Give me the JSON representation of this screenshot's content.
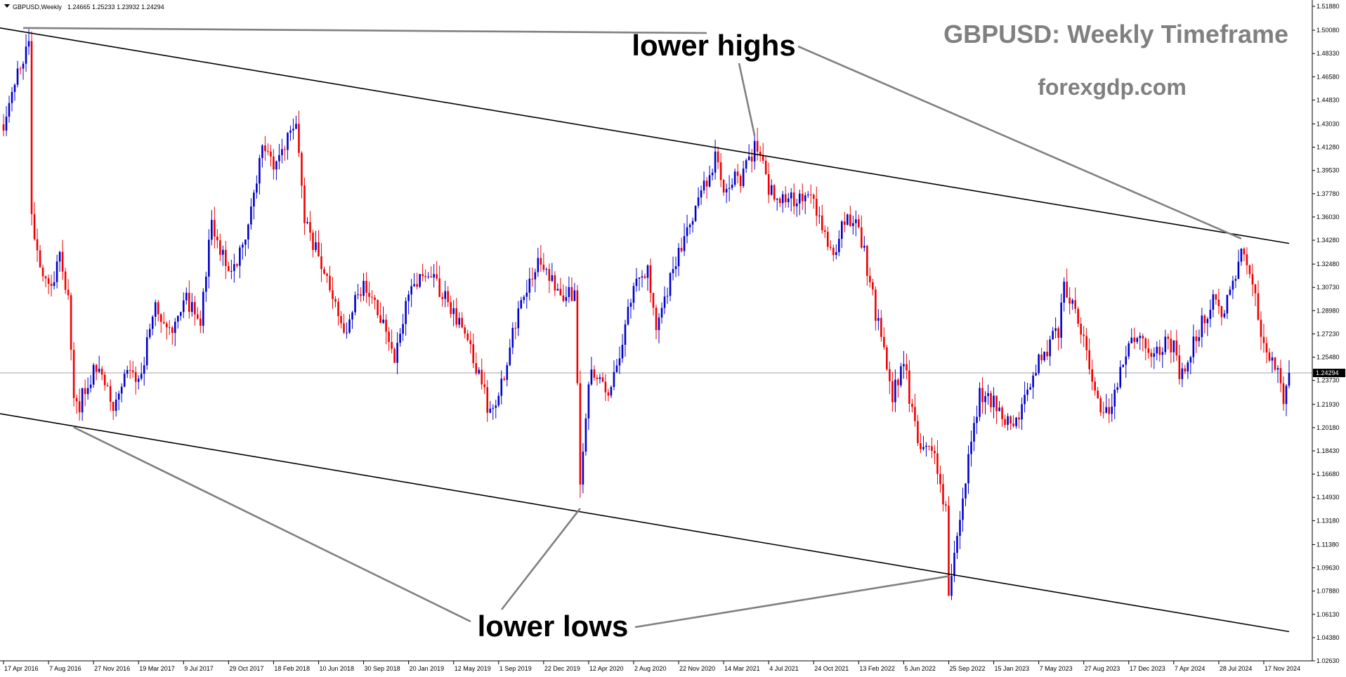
{
  "header": {
    "symbol_label": "GBPUSD,Weekly",
    "ohlc_label": "1.24665 1.25233 1.23932 1.24294"
  },
  "overlay": {
    "title": "GBPUSD: Weekly Timeframe",
    "watermark": "forexgdp.com",
    "annotation_highs": "lower highs",
    "annotation_lows": "lower lows"
  },
  "colors": {
    "bull": "#0000cc",
    "bear": "#ee0000",
    "trendline": "#000000",
    "pointer": "#808080",
    "current_price_line": "#a0a0a0",
    "price_tag_bg": "#000000",
    "price_tag_text": "#ffffff"
  },
  "chart_data": {
    "type": "candlestick",
    "symbol": "GBPUSD",
    "timeframe": "Weekly",
    "current_price": 1.24294,
    "current_price_label": "1.24294",
    "x_start": "2016-04-17",
    "x_end": "2025-01-19",
    "ylim": [
      1.0263,
      1.5188
    ],
    "y_ticks": [
      "1.51880",
      "1.50080",
      "1.48330",
      "1.46580",
      "1.44830",
      "1.43030",
      "1.41280",
      "1.39530",
      "1.37780",
      "1.36030",
      "1.34280",
      "1.32480",
      "1.30730",
      "1.28980",
      "1.27230",
      "1.25480",
      "1.23730",
      "1.21930",
      "1.20180",
      "1.18430",
      "1.16680",
      "1.14930",
      "1.13180",
      "1.11380",
      "1.09630",
      "1.07880",
      "1.06130",
      "1.04380",
      "1.02630"
    ],
    "x_ticks": [
      {
        "label": "17 Apr 2016",
        "date": "2016-04-17"
      },
      {
        "label": "7 Aug 2016",
        "date": "2016-08-07"
      },
      {
        "label": "27 Nov 2016",
        "date": "2016-11-27"
      },
      {
        "label": "19 Mar 2017",
        "date": "2017-03-19"
      },
      {
        "label": "9 Jul 2017",
        "date": "2017-07-09"
      },
      {
        "label": "29 Oct 2017",
        "date": "2017-10-29"
      },
      {
        "label": "18 Feb 2018",
        "date": "2018-02-18"
      },
      {
        "label": "10 Jun 2018",
        "date": "2018-06-10"
      },
      {
        "label": "30 Sep 2018",
        "date": "2018-09-30"
      },
      {
        "label": "20 Jan 2019",
        "date": "2019-01-20"
      },
      {
        "label": "12 May 2019",
        "date": "2019-05-12"
      },
      {
        "label": "1 Sep 2019",
        "date": "2019-09-01"
      },
      {
        "label": "22 Dec 2019",
        "date": "2019-12-22"
      },
      {
        "label": "12 Apr 2020",
        "date": "2020-04-12"
      },
      {
        "label": "2 Aug 2020",
        "date": "2020-08-02"
      },
      {
        "label": "22 Nov 2020",
        "date": "2020-11-22"
      },
      {
        "label": "14 Mar 2021",
        "date": "2021-03-14"
      },
      {
        "label": "4 Jul 2021",
        "date": "2021-07-04"
      },
      {
        "label": "24 Oct 2021",
        "date": "2021-10-24"
      },
      {
        "label": "13 Feb 2022",
        "date": "2022-02-13"
      },
      {
        "label": "5 Jun 2022",
        "date": "2022-06-05"
      },
      {
        "label": "25 Sep 2022",
        "date": "2022-09-25"
      },
      {
        "label": "15 Jan 2023",
        "date": "2023-01-15"
      },
      {
        "label": "7 May 2023",
        "date": "2023-05-07"
      },
      {
        "label": "27 Aug 2023",
        "date": "2023-08-27"
      },
      {
        "label": "17 Dec 2023",
        "date": "2023-12-17"
      },
      {
        "label": "7 Apr 2024",
        "date": "2024-04-07"
      },
      {
        "label": "28 Jul 2024",
        "date": "2024-07-28"
      },
      {
        "label": "17 Nov 2024",
        "date": "2024-11-17"
      }
    ],
    "close_path": [
      {
        "date": "2016-04-17",
        "price": 1.43
      },
      {
        "date": "2016-05-15",
        "price": 1.46
      },
      {
        "date": "2016-06-19",
        "price": 1.49
      },
      {
        "date": "2016-06-26",
        "price": 1.36
      },
      {
        "date": "2016-07-17",
        "price": 1.32
      },
      {
        "date": "2016-08-07",
        "price": 1.305
      },
      {
        "date": "2016-09-04",
        "price": 1.33
      },
      {
        "date": "2016-09-25",
        "price": 1.3
      },
      {
        "date": "2016-10-09",
        "price": 1.22
      },
      {
        "date": "2016-10-23",
        "price": 1.22
      },
      {
        "date": "2016-11-27",
        "price": 1.245
      },
      {
        "date": "2016-12-18",
        "price": 1.24
      },
      {
        "date": "2017-01-15",
        "price": 1.22
      },
      {
        "date": "2017-02-19",
        "price": 1.25
      },
      {
        "date": "2017-03-12",
        "price": 1.23
      },
      {
        "date": "2017-04-30",
        "price": 1.29
      },
      {
        "date": "2017-06-11",
        "price": 1.27
      },
      {
        "date": "2017-07-09",
        "price": 1.3
      },
      {
        "date": "2017-08-20",
        "price": 1.285
      },
      {
        "date": "2017-09-17",
        "price": 1.355
      },
      {
        "date": "2017-10-29",
        "price": 1.32
      },
      {
        "date": "2017-12-10",
        "price": 1.34
      },
      {
        "date": "2018-01-21",
        "price": 1.41
      },
      {
        "date": "2018-02-18",
        "price": 1.4
      },
      {
        "date": "2018-04-15",
        "price": 1.43
      },
      {
        "date": "2018-05-06",
        "price": 1.355
      },
      {
        "date": "2018-06-10",
        "price": 1.33
      },
      {
        "date": "2018-08-12",
        "price": 1.275
      },
      {
        "date": "2018-09-30",
        "price": 1.31
      },
      {
        "date": "2018-11-18",
        "price": 1.28
      },
      {
        "date": "2018-12-16",
        "price": 1.255
      },
      {
        "date": "2019-01-20",
        "price": 1.3
      },
      {
        "date": "2019-03-10",
        "price": 1.32
      },
      {
        "date": "2019-05-12",
        "price": 1.29
      },
      {
        "date": "2019-06-23",
        "price": 1.265
      },
      {
        "date": "2019-08-11",
        "price": 1.21
      },
      {
        "date": "2019-09-01",
        "price": 1.225
      },
      {
        "date": "2019-10-20",
        "price": 1.29
      },
      {
        "date": "2019-12-15",
        "price": 1.33
      },
      {
        "date": "2020-01-19",
        "price": 1.305
      },
      {
        "date": "2020-03-08",
        "price": 1.3
      },
      {
        "date": "2020-03-22",
        "price": 1.16
      },
      {
        "date": "2020-04-12",
        "price": 1.24
      },
      {
        "date": "2020-05-31",
        "price": 1.23
      },
      {
        "date": "2020-06-21",
        "price": 1.25
      },
      {
        "date": "2020-08-02",
        "price": 1.31
      },
      {
        "date": "2020-09-06",
        "price": 1.32
      },
      {
        "date": "2020-09-27",
        "price": 1.28
      },
      {
        "date": "2020-11-22",
        "price": 1.335
      },
      {
        "date": "2021-01-03",
        "price": 1.365
      },
      {
        "date": "2021-02-21",
        "price": 1.405
      },
      {
        "date": "2021-03-14",
        "price": 1.385
      },
      {
        "date": "2021-04-25",
        "price": 1.39
      },
      {
        "date": "2021-06-06",
        "price": 1.415
      },
      {
        "date": "2021-07-04",
        "price": 1.38
      },
      {
        "date": "2021-08-22",
        "price": 1.375
      },
      {
        "date": "2021-10-24",
        "price": 1.375
      },
      {
        "date": "2021-12-12",
        "price": 1.325
      },
      {
        "date": "2022-01-09",
        "price": 1.36
      },
      {
        "date": "2022-02-13",
        "price": 1.355
      },
      {
        "date": "2022-03-13",
        "price": 1.31
      },
      {
        "date": "2022-05-08",
        "price": 1.225
      },
      {
        "date": "2022-06-05",
        "price": 1.25
      },
      {
        "date": "2022-07-10",
        "price": 1.19
      },
      {
        "date": "2022-08-21",
        "price": 1.18
      },
      {
        "date": "2022-09-18",
        "price": 1.14
      },
      {
        "date": "2022-09-25",
        "price": 1.07
      },
      {
        "date": "2022-10-16",
        "price": 1.12
      },
      {
        "date": "2022-11-13",
        "price": 1.18
      },
      {
        "date": "2022-12-11",
        "price": 1.225
      },
      {
        "date": "2023-01-15",
        "price": 1.22
      },
      {
        "date": "2023-03-05",
        "price": 1.2
      },
      {
        "date": "2023-05-07",
        "price": 1.25
      },
      {
        "date": "2023-06-25",
        "price": 1.275
      },
      {
        "date": "2023-07-09",
        "price": 1.31
      },
      {
        "date": "2023-08-27",
        "price": 1.265
      },
      {
        "date": "2023-10-08",
        "price": 1.22
      },
      {
        "date": "2023-10-29",
        "price": 1.215
      },
      {
        "date": "2023-12-17",
        "price": 1.27
      },
      {
        "date": "2024-02-04",
        "price": 1.26
      },
      {
        "date": "2024-04-07",
        "price": 1.265
      },
      {
        "date": "2024-04-21",
        "price": 1.24
      },
      {
        "date": "2024-06-09",
        "price": 1.275
      },
      {
        "date": "2024-07-14",
        "price": 1.3
      },
      {
        "date": "2024-08-04",
        "price": 1.28
      },
      {
        "date": "2024-09-22",
        "price": 1.335
      },
      {
        "date": "2024-10-27",
        "price": 1.3
      },
      {
        "date": "2024-11-17",
        "price": 1.265
      },
      {
        "date": "2024-12-08",
        "price": 1.255
      },
      {
        "date": "2025-01-05",
        "price": 1.225
      },
      {
        "date": "2025-01-19",
        "price": 1.24294
      }
    ],
    "trendlines": [
      {
        "name": "upper-channel-line",
        "start": {
          "date": "2016-04-17",
          "price": 1.5025
        },
        "end": {
          "date": "2025-01-19",
          "price": 1.3404
        }
      },
      {
        "name": "lower-channel-line",
        "start": {
          "date": "2016-04-17",
          "price": 1.2123
        },
        "end": {
          "date": "2025-01-19",
          "price": 1.0483
        }
      }
    ],
    "swing_points": {
      "lower_highs": [
        {
          "date": "2016-06-05",
          "price": 1.5025
        },
        {
          "date": "2021-05-30",
          "price": 1.4215
        },
        {
          "date": "2024-09-22",
          "price": 1.344
        }
      ],
      "lower_lows": [
        {
          "date": "2016-10-09",
          "price": 1.202
        },
        {
          "date": "2020-03-22",
          "price": 1.141
        },
        {
          "date": "2022-09-25",
          "price": 1.09
        }
      ]
    }
  }
}
